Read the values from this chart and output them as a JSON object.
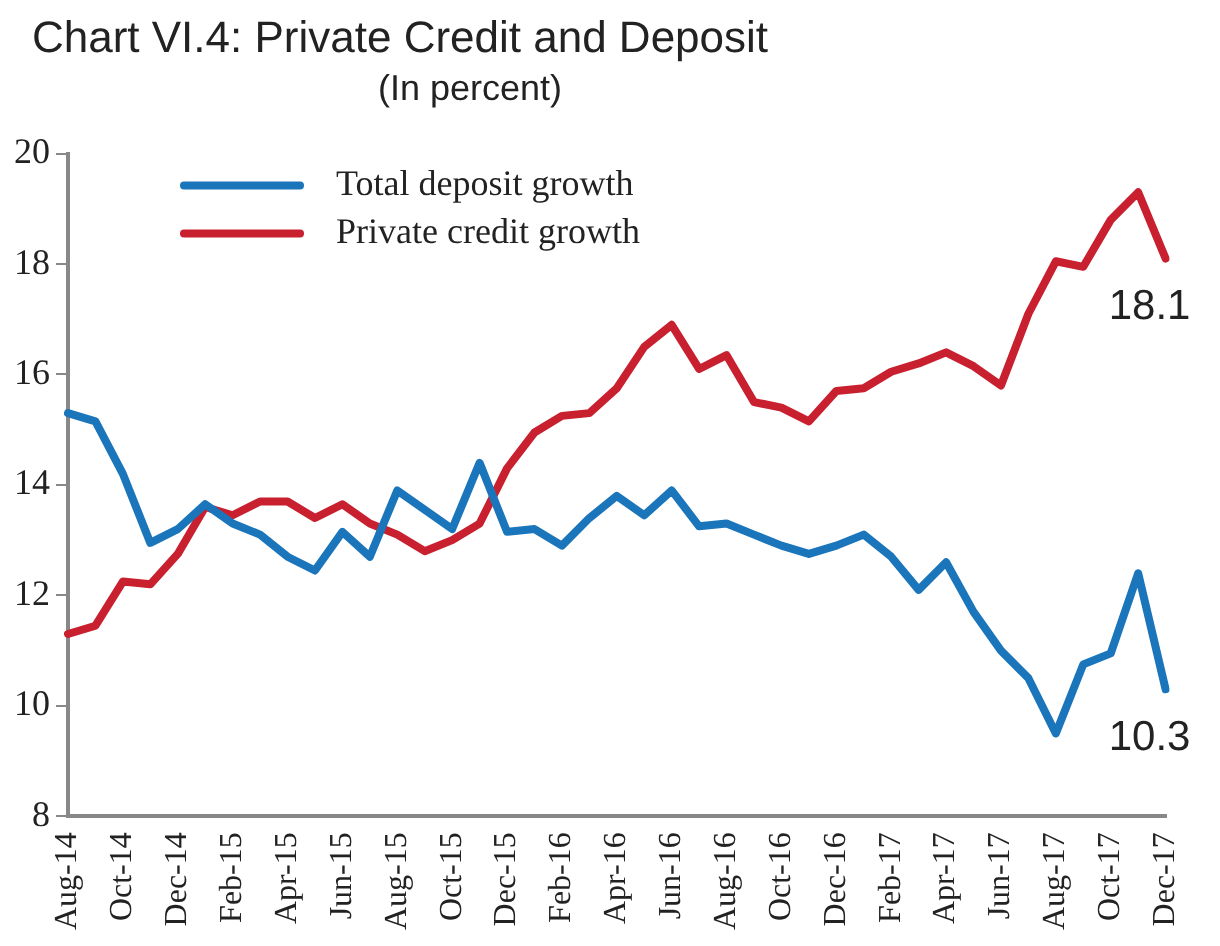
{
  "chart_data": {
    "type": "line",
    "title": "Chart VI.4: Private Credit and Deposit",
    "subtitle": "(In percent)",
    "categories": [
      "Aug-14",
      null,
      "Oct-14",
      null,
      "Dec-14",
      null,
      "Feb-15",
      null,
      "Apr-15",
      null,
      "Jun-15",
      null,
      "Aug-15",
      null,
      "Oct-15",
      null,
      "Dec-15",
      null,
      "Feb-16",
      null,
      "Apr-16",
      null,
      "Jun-16",
      null,
      "Aug-16",
      null,
      "Oct-16",
      null,
      "Dec-16",
      null,
      "Feb-17",
      null,
      "Apr-17",
      null,
      "Jun-17",
      null,
      "Aug-17",
      null,
      "Oct-17",
      null,
      "Dec-17"
    ],
    "series": [
      {
        "name": "Total deposit growth",
        "color": "#1a75bb",
        "values": [
          15.3,
          15.15,
          14.2,
          12.95,
          13.2,
          13.65,
          13.3,
          13.1,
          12.7,
          12.45,
          13.15,
          12.7,
          13.9,
          13.55,
          13.2,
          14.4,
          13.15,
          13.2,
          12.9,
          13.4,
          13.8,
          13.45,
          13.9,
          13.25,
          13.3,
          13.1,
          12.9,
          12.75,
          12.9,
          13.1,
          12.7,
          12.1,
          12.6,
          11.7,
          11.0,
          10.5,
          9.5,
          10.75,
          10.95,
          12.4,
          10.3
        ],
        "value_labels": [
          null,
          null,
          null,
          null,
          null,
          null,
          null,
          null,
          null,
          null,
          null,
          null,
          null,
          null,
          null,
          null,
          null,
          null,
          null,
          null,
          null,
          null,
          null,
          null,
          null,
          null,
          null,
          null,
          null,
          null,
          null,
          null,
          null,
          null,
          null,
          null,
          null,
          null,
          null,
          null,
          "10.3"
        ]
      },
      {
        "name": "Private credit growth",
        "color": "#c8202f",
        "values": [
          11.3,
          11.45,
          12.25,
          12.2,
          12.75,
          13.6,
          13.45,
          13.7,
          13.7,
          13.4,
          13.65,
          13.3,
          13.1,
          12.8,
          13.0,
          13.3,
          14.3,
          14.95,
          15.25,
          15.3,
          15.75,
          16.5,
          16.9,
          16.1,
          16.35,
          15.5,
          15.4,
          15.15,
          15.7,
          15.75,
          16.05,
          16.2,
          16.4,
          16.15,
          15.8,
          17.1,
          18.05,
          17.95,
          18.8,
          19.3,
          18.1
        ],
        "value_labels": [
          null,
          null,
          null,
          null,
          null,
          null,
          null,
          null,
          null,
          null,
          null,
          null,
          null,
          null,
          null,
          null,
          null,
          null,
          null,
          null,
          null,
          null,
          null,
          null,
          null,
          null,
          null,
          null,
          null,
          null,
          null,
          null,
          null,
          null,
          null,
          null,
          null,
          null,
          null,
          null,
          "18.1"
        ]
      }
    ],
    "ylim": [
      8,
      20
    ],
    "yticks": [
      8,
      10,
      12,
      14,
      16,
      18,
      20
    ],
    "grid": false,
    "legend": "top left",
    "marker": "none",
    "line_style": "solid"
  }
}
